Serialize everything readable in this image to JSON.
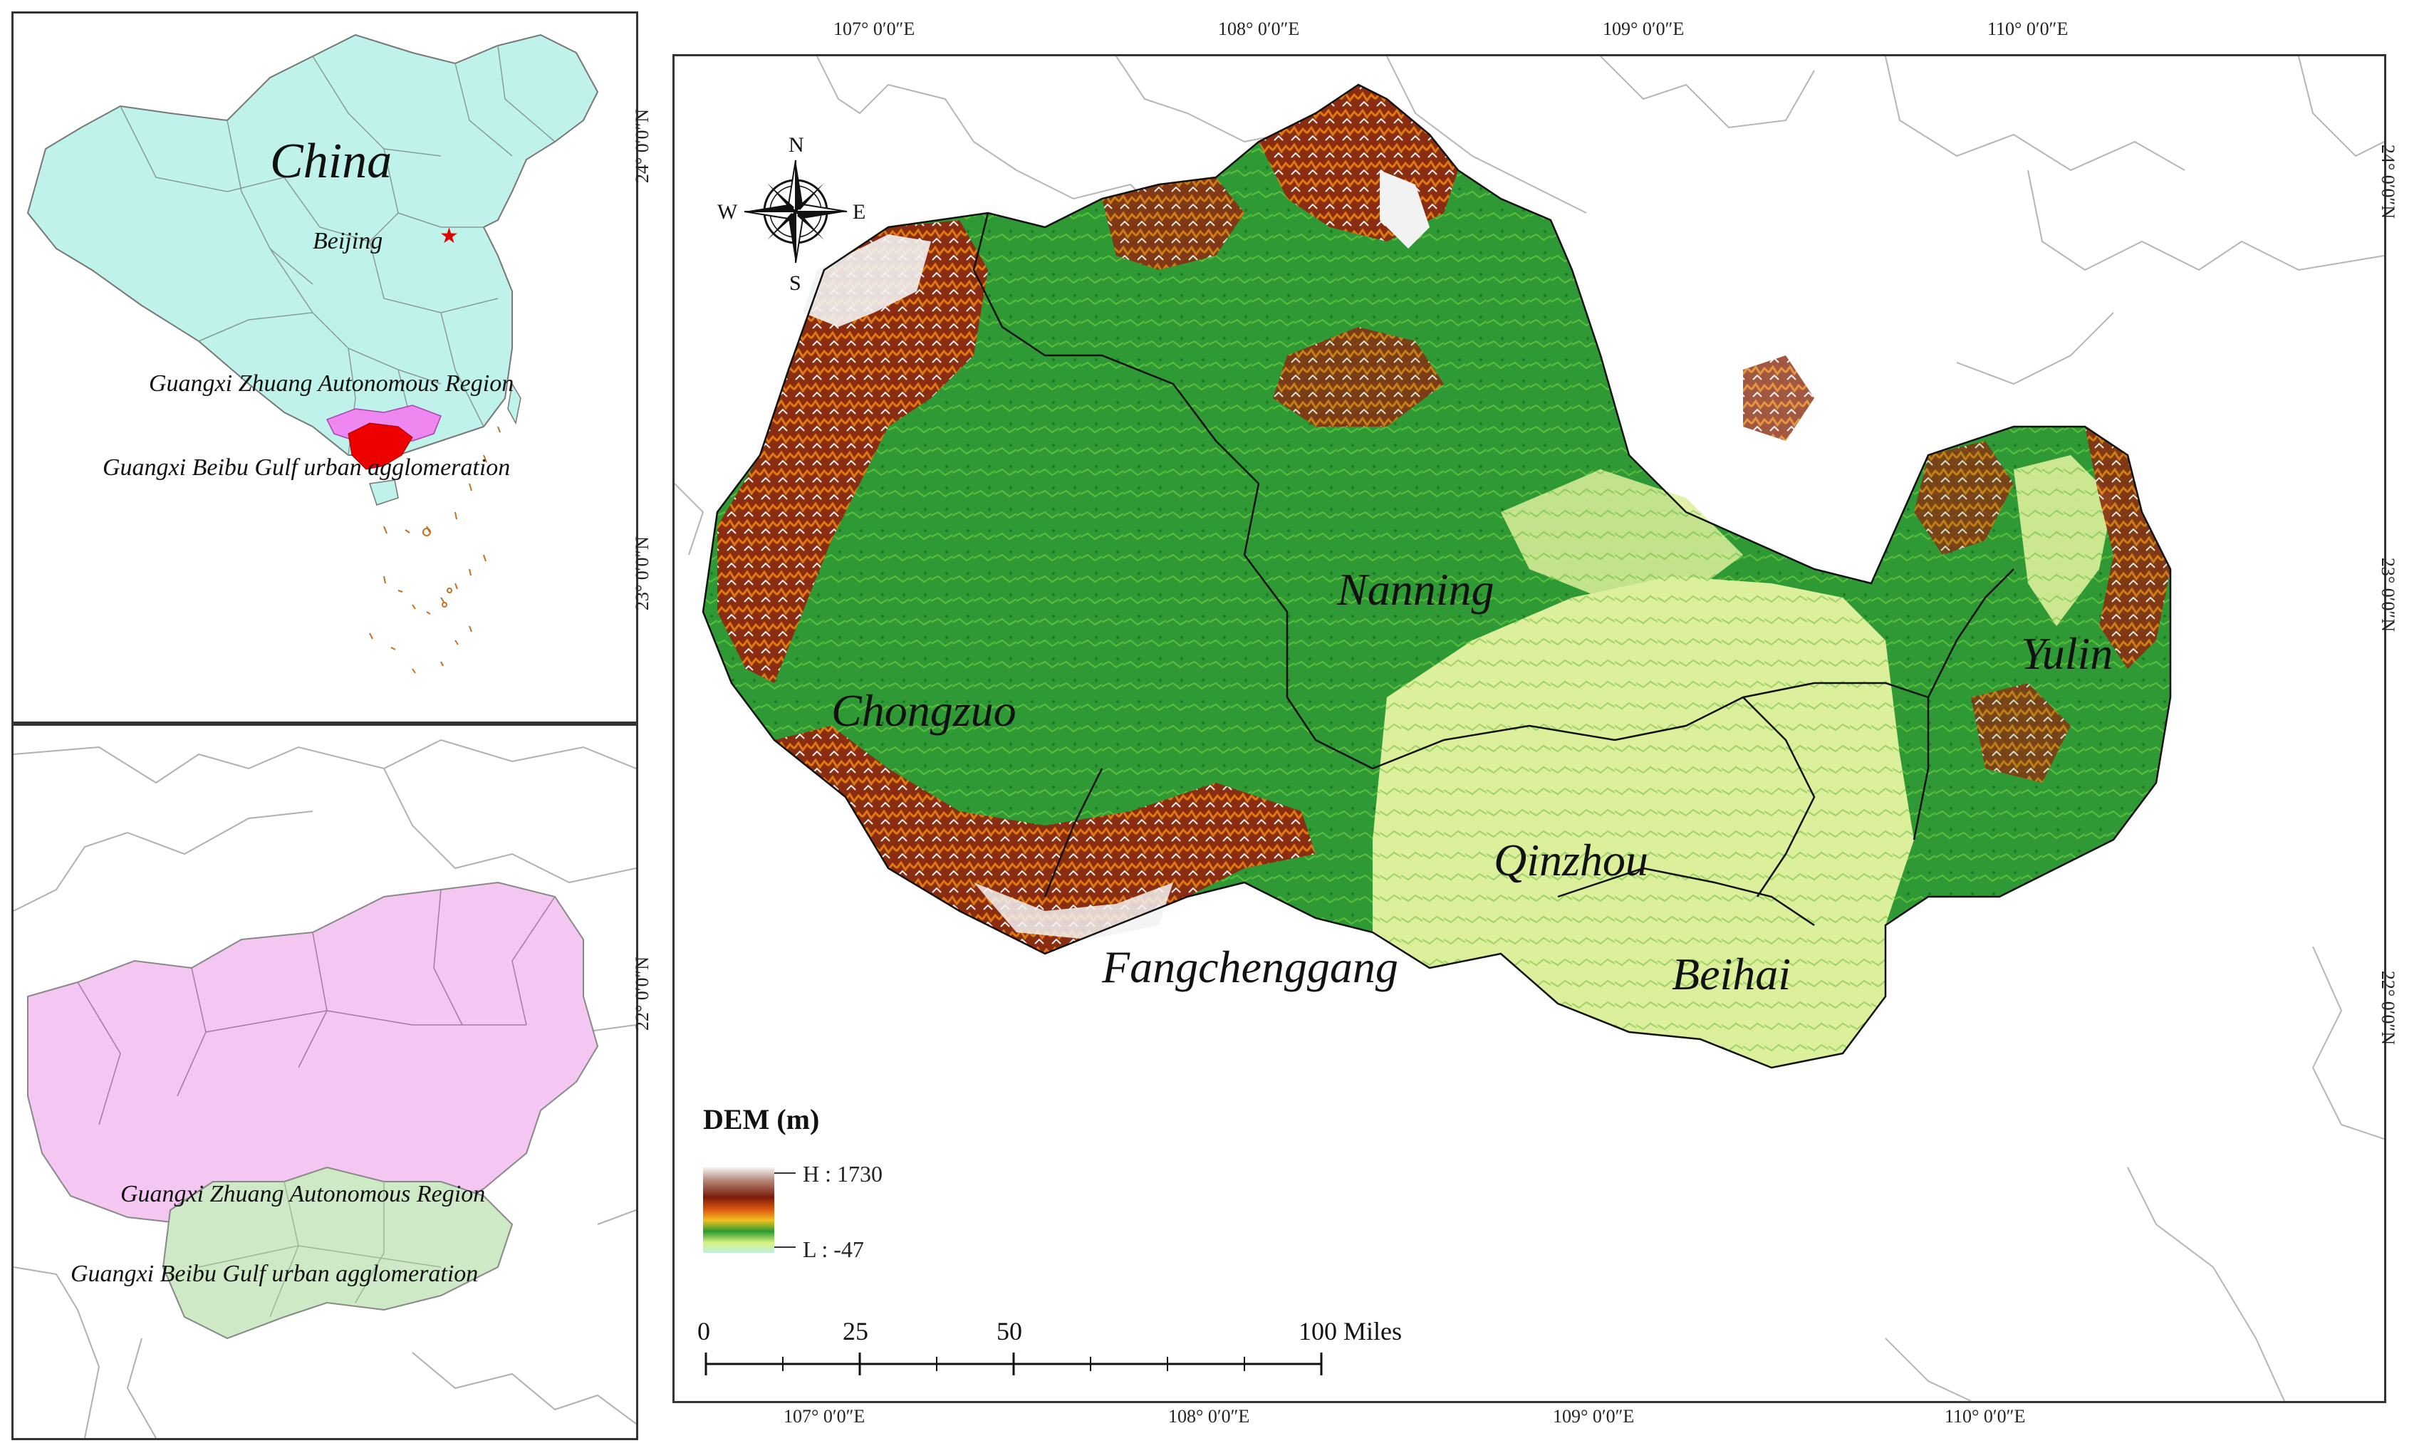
{
  "inset_china": {
    "country_label": "China",
    "capital_label": "Beijing",
    "region_label": "Guangxi Zhuang Autonomous Region",
    "agglomeration_label": "Guangxi Beibu Gulf urban agglomeration"
  },
  "inset_guangxi": {
    "region_label": "Guangxi Zhuang Autonomous Region",
    "agglomeration_label": "Guangxi Beibu Gulf urban agglomeration"
  },
  "main_map": {
    "cities": [
      "Chongzuo",
      "Nanning",
      "Yulin",
      "Qinzhou",
      "Fangchenggang",
      "Beihai"
    ],
    "compass": {
      "n": "N",
      "s": "S",
      "e": "E",
      "w": "W"
    },
    "legend": {
      "title": "DEM (m)",
      "high": "H : 1730",
      "low": "L : -47"
    },
    "scale_bar": {
      "labels": [
        "0",
        "25",
        "50",
        "100 Miles"
      ]
    },
    "longitude_labels": [
      "107° 0′0″E",
      "108° 0′0″E",
      "109° 0′0″E",
      "110° 0′0″E"
    ],
    "latitude_labels": [
      "24° 0′0″N",
      "23° 0′0″N",
      "22° 0′0″N"
    ]
  },
  "colors": {
    "china_fill": "#bff2ea",
    "guangxi_fill": "#f4c6f2",
    "guangxi_highlight": "#ee88f0",
    "beibu_highlight": "#ee0000",
    "beibu_fill": "#cde9c5",
    "dem_green": "#2f9a35",
    "dem_light": "#e8f0a0",
    "dem_brown": "#8a2d10",
    "dem_orange": "#e07a10"
  }
}
